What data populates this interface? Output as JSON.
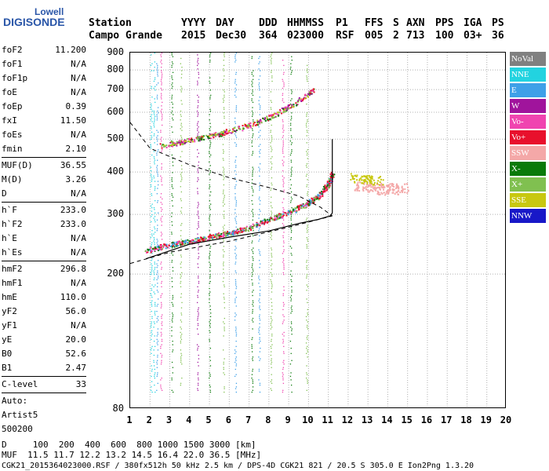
{
  "logo": {
    "line1": "Lowell",
    "line2": "DIGISONDE"
  },
  "header": {
    "labels": {
      "station": "Station",
      "yyyy": "YYYY",
      "day": "DAY",
      "ddd": "DDD",
      "hhmmss": "HHMMSS",
      "p1": "P1",
      "ffs": "FFS",
      "s": "S",
      "axn": "AXN",
      "pps": "PPS",
      "iga": "IGA",
      "ps": "PS"
    },
    "values": {
      "station": "Campo Grande",
      "yyyy": "2015",
      "day": "Dec30",
      "ddd": "364",
      "hhmmss": "023000",
      "p1": "RSF",
      "ffs": "005",
      "s": "2",
      "axn": "713",
      "pps": "100",
      "iga": "03+",
      "ps": "36"
    }
  },
  "params": {
    "group1": [
      {
        "k": "foF2",
        "v": "11.200"
      },
      {
        "k": "foF1",
        "v": "N/A"
      },
      {
        "k": "foF1p",
        "v": "N/A"
      },
      {
        "k": "foE",
        "v": "N/A"
      },
      {
        "k": "foEp",
        "v": "0.39"
      },
      {
        "k": "fxI",
        "v": "11.50"
      },
      {
        "k": "foEs",
        "v": "N/A"
      },
      {
        "k": "fmin",
        "v": "2.10"
      }
    ],
    "group2": [
      {
        "k": "MUF(D)",
        "v": "36.55"
      },
      {
        "k": "M(D)",
        "v": "3.26"
      },
      {
        "k": "D",
        "v": "N/A"
      }
    ],
    "group3": [
      {
        "k": "h`F",
        "v": "233.0"
      },
      {
        "k": "h`F2",
        "v": "233.0"
      },
      {
        "k": "h`E",
        "v": "N/A"
      },
      {
        "k": "h`Es",
        "v": "N/A"
      }
    ],
    "group4": [
      {
        "k": "hmF2",
        "v": "296.8"
      },
      {
        "k": "hmF1",
        "v": "N/A"
      },
      {
        "k": "hmE",
        "v": "110.0"
      },
      {
        "k": "yF2",
        "v": "56.0"
      },
      {
        "k": "yF1",
        "v": "N/A"
      },
      {
        "k": "yE",
        "v": "20.0"
      },
      {
        "k": "B0",
        "v": "52.6"
      },
      {
        "k": "B1",
        "v": "2.47"
      }
    ],
    "group5": [
      {
        "k": "C-level",
        "v": "33"
      }
    ],
    "auto": [
      "Auto:",
      "Artist5",
      "500200"
    ]
  },
  "legend": [
    {
      "label": "NoVal",
      "color": "#808080"
    },
    {
      "label": "NNE",
      "color": "#22d3e0"
    },
    {
      "label": "E",
      "color": "#3ea0e8"
    },
    {
      "label": "W",
      "color": "#a0149c"
    },
    {
      "label": "Vo-",
      "color": "#f044b0"
    },
    {
      "label": "Vo+",
      "color": "#e8102c"
    },
    {
      "label": "SSW",
      "color": "#f4a8a8"
    },
    {
      "label": "X-",
      "color": "#0a7a0a"
    },
    {
      "label": "X+",
      "color": "#80c050"
    },
    {
      "label": "SSE",
      "color": "#c8c810"
    },
    {
      "label": "NNW",
      "color": "#1818c8"
    }
  ],
  "chart_data": {
    "type": "scatter",
    "title": "",
    "xlabel": "",
    "ylabel": "",
    "xlim": [
      1,
      20
    ],
    "ylim": [
      80,
      900
    ],
    "yscale": "log",
    "x_ticks": [
      "1",
      "2",
      "3",
      "4",
      "5",
      "6",
      "7",
      "8",
      "9",
      "10",
      "11",
      "12",
      "13",
      "14",
      "15",
      "16",
      "17",
      "18",
      "19",
      "20"
    ],
    "y_ticks": [
      "80",
      "200",
      "300",
      "400",
      "500",
      "600",
      "700",
      "800",
      "900"
    ],
    "grid": true,
    "series": [
      {
        "name": "O-trace (lower)",
        "points": [
          [
            1.8,
            235
          ],
          [
            3,
            245
          ],
          [
            4,
            250
          ],
          [
            5,
            258
          ],
          [
            6,
            265
          ],
          [
            7,
            275
          ],
          [
            8,
            290
          ],
          [
            9,
            305
          ],
          [
            10,
            325
          ],
          [
            10.6,
            345
          ],
          [
            11,
            370
          ],
          [
            11.2,
            400
          ]
        ]
      },
      {
        "name": "O-trace (upper)",
        "points": [
          [
            2.5,
            480
          ],
          [
            3.5,
            490
          ],
          [
            4.5,
            505
          ],
          [
            5.5,
            520
          ],
          [
            6.5,
            540
          ],
          [
            7.5,
            565
          ],
          [
            8.5,
            600
          ],
          [
            9.5,
            650
          ],
          [
            10.2,
            700
          ]
        ]
      },
      {
        "name": "Es blob",
        "points": [
          [
            12.8,
            365
          ],
          [
            13.5,
            360
          ],
          [
            14,
            355
          ],
          [
            14.5,
            360
          ],
          [
            12.6,
            385
          ],
          [
            13.2,
            380
          ]
        ]
      }
    ]
  },
  "footer": {
    "d_row": "D     100  200  400  600  800 1000 1500 3000 [km]",
    "muf_row": "MUF  11.5 11.7 12.2 13.2 14.5 16.4 22.0 36.5 [MHz]",
    "info_row": "CGK21_2015364023000.RSF / 380fx512h 50 kHz 2.5 km / DPS-4D CGK21 821 / 20.5 S 305.0 E Ion2Png 1.3.20"
  }
}
